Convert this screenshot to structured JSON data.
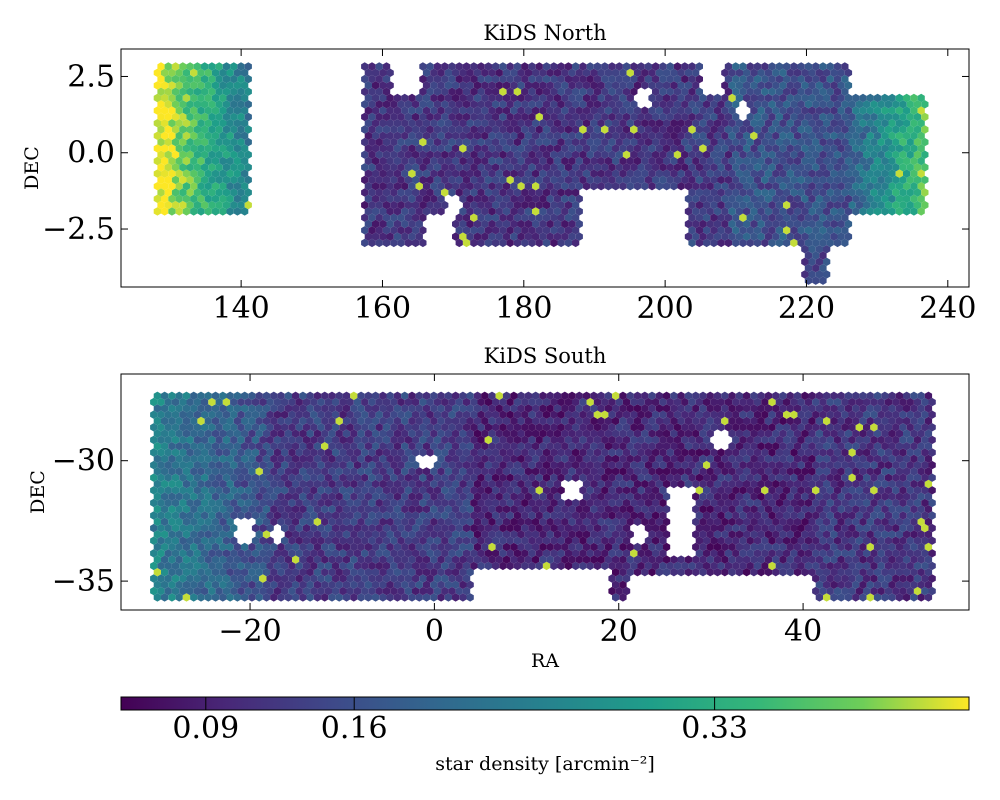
{
  "colorbar": {
    "label": "star density [arcmin⁻²]",
    "ticks": [
      0.09,
      0.16,
      0.33
    ],
    "tick_labels": [
      "0.09",
      "0.16",
      "0.33"
    ],
    "range": [
      0.05,
      0.45
    ],
    "colormap": "viridis",
    "orientation": "horizontal"
  },
  "chart_data": [
    {
      "type": "heatmap",
      "subtype": "hexbin-map",
      "title": "KiDS North",
      "xlabel": "",
      "ylabel": "DEC",
      "xlim": [
        123,
        243
      ],
      "ylim": [
        -4.4,
        3.4
      ],
      "xticks": [
        140,
        160,
        180,
        200,
        220,
        240
      ],
      "yticks": [
        -2.5,
        0.0,
        2.5
      ],
      "ytick_labels": [
        "−2.5",
        "0.0",
        "2.5"
      ],
      "footprint_regions": [
        {
          "ra": [
            128,
            141.5
          ],
          "dec": [
            -2.1,
            3.0
          ],
          "density": 0.4,
          "note": "west block, densest at low RA"
        },
        {
          "ra": [
            157,
            189
          ],
          "dec": [
            -3.0,
            3.0
          ],
          "density": 0.12
        },
        {
          "ra": [
            189,
            203
          ],
          "dec": [
            -1.1,
            3.0
          ],
          "density": 0.12
        },
        {
          "ra": [
            203,
            209
          ],
          "dec": [
            -3.0,
            3.0
          ],
          "density": 0.13
        },
        {
          "ra": [
            209,
            226
          ],
          "dec": [
            -3.0,
            3.0
          ],
          "density": 0.16
        },
        {
          "ra": [
            219.5,
            223
          ],
          "dec": [
            -4.2,
            -3.0
          ],
          "density": 0.14
        },
        {
          "ra": [
            226,
            237
          ],
          "dec": [
            -2.0,
            2.0
          ],
          "density": 0.27,
          "note": "east wing, density rising toward high RA"
        }
      ],
      "holes": [
        {
          "ra": [
            161.5,
            165.5
          ],
          "dec": [
            2.0,
            3.0
          ]
        },
        {
          "ra": [
            188,
            203
          ],
          "dec": [
            -3.0,
            -1.1
          ]
        },
        {
          "ra": [
            166,
            170
          ],
          "dec": [
            -3.0,
            -2.0
          ]
        },
        {
          "ra": [
            205,
            208
          ],
          "dec": [
            2.0,
            3.0
          ]
        },
        {
          "ra": [
            196,
            198
          ],
          "dec": [
            1.5,
            2.2
          ]
        },
        {
          "ra": [
            169,
            171
          ],
          "dec": [
            -2.0,
            -1.4
          ]
        },
        {
          "ra": [
            210,
            212
          ],
          "dec": [
            1.0,
            1.7
          ]
        }
      ]
    },
    {
      "type": "heatmap",
      "subtype": "hexbin-map",
      "title": "KiDS South",
      "xlabel": "RA",
      "ylabel": "DEC",
      "xlim": [
        -34,
        58
      ],
      "ylim": [
        -36.2,
        -26.4
      ],
      "xticks": [
        -20,
        0,
        20,
        40
      ],
      "xtick_labels": [
        "−20",
        "0",
        "20",
        "40"
      ],
      "yticks": [
        -35,
        -30
      ],
      "ytick_labels": [
        "−35",
        "−30"
      ],
      "footprint_regions": [
        {
          "ra": [
            -30.5,
            -18
          ],
          "dec": [
            -35.7,
            -27.3
          ],
          "density": 0.22,
          "note": "greener at low RA"
        },
        {
          "ra": [
            -18,
            4
          ],
          "dec": [
            -35.7,
            -27.3
          ],
          "density": 0.13
        },
        {
          "ra": [
            4,
            41
          ],
          "dec": [
            -35.7,
            -27.3
          ],
          "density": 0.1
        },
        {
          "ra": [
            41,
            54
          ],
          "dec": [
            -35.7,
            -27.3
          ],
          "density": 0.12
        }
      ],
      "holes": [
        {
          "ra": [
            4,
            19
          ],
          "dec": [
            -35.7,
            -34.5
          ]
        },
        {
          "ra": [
            21,
            41
          ],
          "dec": [
            -35.7,
            -34.7
          ]
        },
        {
          "ra": [
            -21.5,
            -19.5
          ],
          "dec": [
            -33.4,
            -32.4
          ]
        },
        {
          "ra": [
            -17.5,
            -16.5
          ],
          "dec": [
            -33.4,
            -32.6
          ]
        },
        {
          "ra": [
            25.5,
            28
          ],
          "dec": [
            -34.0,
            -31.0
          ]
        },
        {
          "ra": [
            21.5,
            23
          ],
          "dec": [
            -33.4,
            -32.6
          ]
        },
        {
          "ra": [
            -2,
            0
          ],
          "dec": [
            -30.4,
            -29.8
          ]
        },
        {
          "ra": [
            14,
            16
          ],
          "dec": [
            -31.6,
            -30.8
          ]
        },
        {
          "ra": [
            30,
            32
          ],
          "dec": [
            -29.4,
            -28.8
          ]
        }
      ]
    }
  ]
}
